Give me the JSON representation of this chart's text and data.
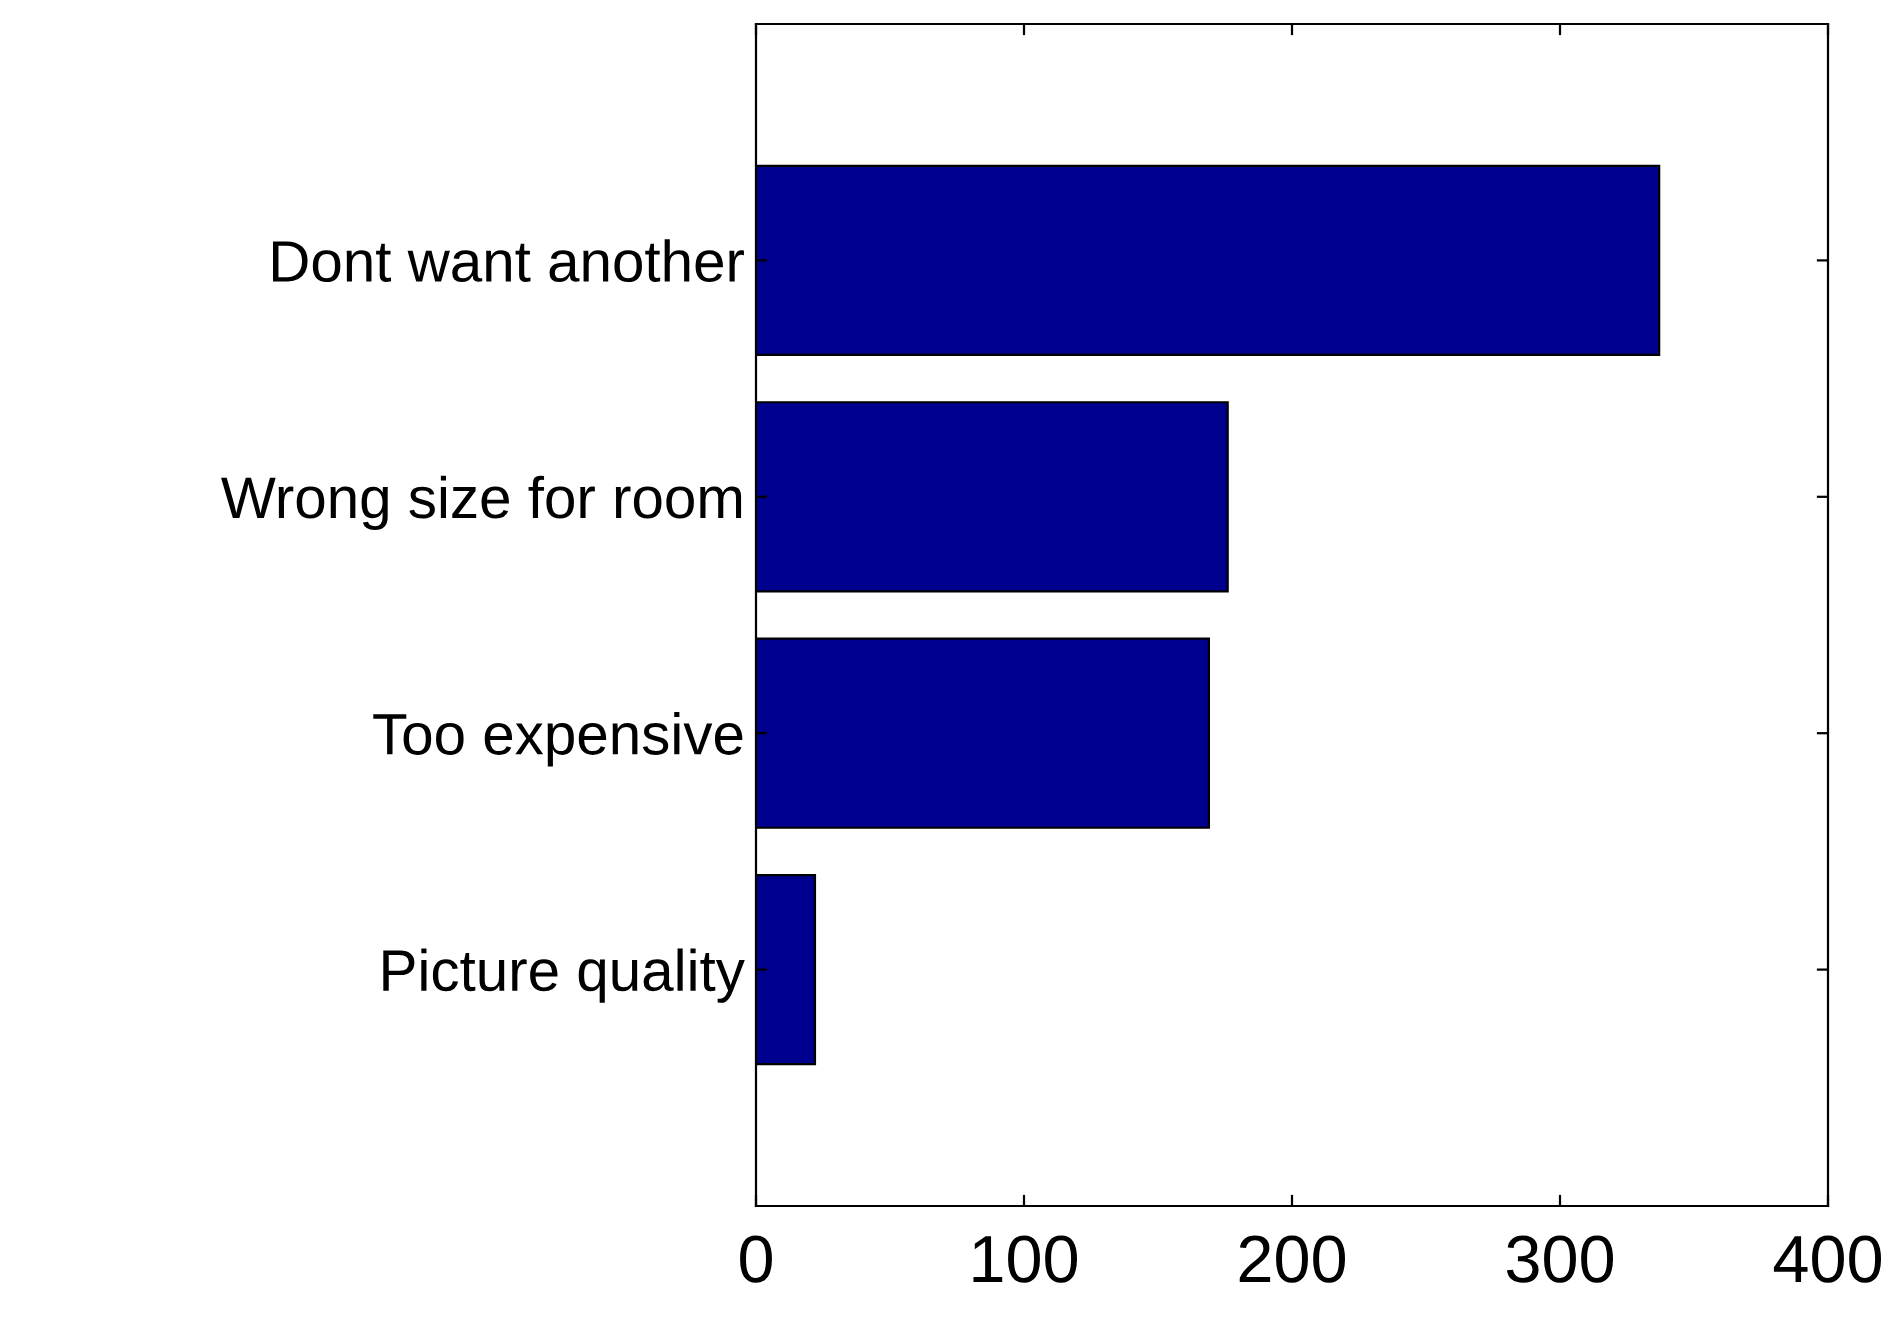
{
  "chart_data": {
    "type": "bar",
    "orientation": "horizontal",
    "categories": [
      "Dont want another",
      "Wrong size for room",
      "Too expensive",
      "Picture quality"
    ],
    "values": [
      337,
      176,
      169,
      22
    ],
    "color": "#00008f",
    "xlim": [
      0,
      400
    ],
    "xticks": [
      0,
      100,
      200,
      300,
      400
    ],
    "grid": false
  }
}
